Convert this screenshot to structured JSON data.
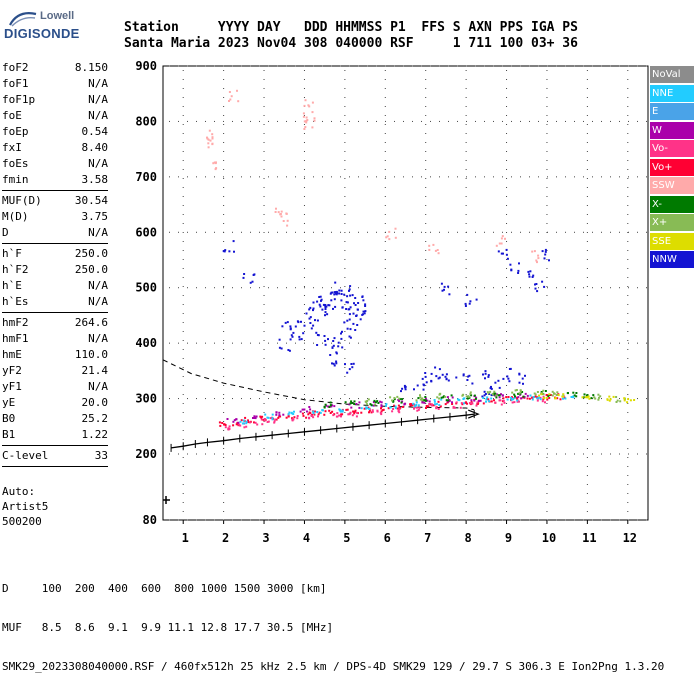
{
  "logo": {
    "line1": "Lowell",
    "line2": "DIGISONDE"
  },
  "header": {
    "line1": "Station     YYYY DAY   DDD HHMMSS P1  FFS S AXN PPS IGA PS",
    "line2": "Santa Maria 2023 Nov04 308 040000 RSF     1 711 100 03+ 36"
  },
  "params": {
    "group1": [
      {
        "name": "foF2",
        "value": "8.150"
      },
      {
        "name": "foF1",
        "value": "N/A"
      },
      {
        "name": "foF1p",
        "value": "N/A"
      },
      {
        "name": "foE",
        "value": "N/A"
      },
      {
        "name": "foEp",
        "value": "0.54"
      },
      {
        "name": "fxI",
        "value": "8.40"
      },
      {
        "name": "foEs",
        "value": "N/A"
      },
      {
        "name": "fmin",
        "value": "3.58"
      }
    ],
    "group2": [
      {
        "name": "MUF(D)",
        "value": "30.54"
      },
      {
        "name": "M(D)",
        "value": "3.75"
      },
      {
        "name": "D",
        "value": "N/A"
      }
    ],
    "group3": [
      {
        "name": "h`F",
        "value": "250.0"
      },
      {
        "name": "h`F2",
        "value": "250.0"
      },
      {
        "name": "h`E",
        "value": "N/A"
      },
      {
        "name": "h`Es",
        "value": "N/A"
      }
    ],
    "group4": [
      {
        "name": "hmF2",
        "value": "264.6"
      },
      {
        "name": "hmF1",
        "value": "N/A"
      },
      {
        "name": "hmE",
        "value": "110.0"
      },
      {
        "name": "yF2",
        "value": "21.4"
      },
      {
        "name": "yF1",
        "value": "N/A"
      },
      {
        "name": "yE",
        "value": "20.0"
      },
      {
        "name": "B0",
        "value": "25.2"
      },
      {
        "name": "B1",
        "value": "1.22"
      }
    ],
    "group5": [
      {
        "name": "C-level",
        "value": "33"
      }
    ]
  },
  "auto": {
    "line1": "Auto:",
    "line2": "Artist5",
    "line3": "500200"
  },
  "legend": [
    {
      "label": "NoVal",
      "color": "#8c8c8c"
    },
    {
      "label": "NNE",
      "color": "#22ccff"
    },
    {
      "label": "E",
      "color": "#4aa3e8"
    },
    {
      "label": "W",
      "color": "#aa00aa"
    },
    {
      "label": "Vo-",
      "color": "#ff3388"
    },
    {
      "label": "Vo+",
      "color": "#ff0033"
    },
    {
      "label": "SSW",
      "color": "#ffaaaa"
    },
    {
      "label": "X-",
      "color": "#007a00"
    },
    {
      "label": "X+",
      "color": "#88bb55"
    },
    {
      "label": "SSE",
      "color": "#dddd00"
    },
    {
      "label": "NNW",
      "color": "#1414d2"
    }
  ],
  "footer": {
    "line1": "D     100  200  400  600  800 1000 1500 3000 [km]",
    "line2": "MUF   8.5  8.6  9.1  9.9 11.1 12.8 17.7 30.5 [MHz]",
    "line3": "SMK29_2023308040000.RSF / 460fx512h 25 kHz 2.5 km / DPS-4D SMK29 129 / 29.7 S 306.3 E Ion2Png 1.3.20"
  },
  "chart_data": {
    "type": "scatter",
    "xlim": [
      0.5,
      12.5
    ],
    "ylim": [
      80,
      900
    ],
    "xticks": [
      "1",
      "2",
      "3",
      "4",
      "5",
      "6",
      "7",
      "8",
      "9",
      "10",
      "11",
      "12"
    ],
    "yticks": [
      "900",
      "800",
      "700",
      "600",
      "500",
      "400",
      "300",
      "200",
      "80"
    ],
    "grid": true,
    "series": [
      {
        "color": "#ff0033",
        "points": [
          [
            2,
            255
          ],
          [
            2.3,
            258
          ],
          [
            2.6,
            262
          ],
          [
            3,
            265
          ],
          [
            3.3,
            268
          ],
          [
            3.6,
            270
          ],
          [
            4,
            272
          ],
          [
            4.3,
            274
          ],
          [
            4.6,
            276
          ],
          [
            5,
            278
          ],
          [
            5.3,
            280
          ],
          [
            5.6,
            281
          ],
          [
            6,
            283
          ],
          [
            6.3,
            285
          ],
          [
            6.6,
            287
          ],
          [
            7,
            289
          ],
          [
            7.3,
            291
          ],
          [
            7.6,
            293
          ],
          [
            8,
            295
          ],
          [
            8.3,
            297
          ],
          [
            8.6,
            299
          ],
          [
            9,
            300
          ],
          [
            9.3,
            302
          ],
          [
            9.6,
            303
          ],
          [
            10,
            304
          ],
          [
            10.3,
            305
          ]
        ]
      },
      {
        "color": "#ff3388",
        "points": [
          [
            2.1,
            250
          ],
          [
            2.5,
            255
          ],
          [
            2.9,
            260
          ],
          [
            3.2,
            262
          ],
          [
            3.8,
            266
          ],
          [
            4.2,
            268
          ],
          [
            4.8,
            272
          ],
          [
            5.2,
            274
          ],
          [
            5.8,
            278
          ],
          [
            6.2,
            280
          ],
          [
            6.8,
            284
          ],
          [
            7.2,
            287
          ],
          [
            7.8,
            290
          ],
          [
            8.2,
            293
          ],
          [
            8.8,
            296
          ],
          [
            9.2,
            298
          ],
          [
            9.8,
            300
          ]
        ]
      },
      {
        "color": "#aa00aa",
        "points": [
          [
            2.2,
            262
          ],
          [
            2.8,
            270
          ],
          [
            3.4,
            276
          ],
          [
            4,
            282
          ],
          [
            4.6,
            286
          ],
          [
            5.2,
            290
          ],
          [
            5.8,
            292
          ],
          [
            6.4,
            296
          ],
          [
            7,
            298
          ],
          [
            7.6,
            300
          ],
          [
            8.2,
            302
          ],
          [
            8.8,
            305
          ],
          [
            9.4,
            306
          ]
        ]
      },
      {
        "color": "#1414d2",
        "points": [
          [
            4.3,
            480
          ],
          [
            4.4,
            470
          ],
          [
            4.5,
            460
          ],
          [
            4.6,
            475
          ],
          [
            4.7,
            490
          ],
          [
            4.8,
            500
          ],
          [
            4.9,
            485
          ],
          [
            5,
            470
          ],
          [
            5.1,
            495
          ],
          [
            5.2,
            460
          ],
          [
            5.3,
            445
          ],
          [
            4.2,
            440
          ],
          [
            4.1,
            455
          ],
          [
            3.9,
            430
          ],
          [
            3.8,
            420
          ],
          [
            3.5,
            430
          ],
          [
            4.4,
            410
          ],
          [
            4.6,
            400
          ],
          [
            4.8,
            395
          ],
          [
            5,
            420
          ],
          [
            5.1,
            435
          ],
          [
            5.3,
            480
          ],
          [
            5.4,
            465
          ],
          [
            7,
            340
          ],
          [
            7.3,
            350
          ],
          [
            7.6,
            345
          ],
          [
            8,
            335
          ],
          [
            8.4,
            345
          ],
          [
            8.7,
            330
          ],
          [
            9,
            345
          ],
          [
            9.3,
            340
          ],
          [
            8.9,
            560
          ],
          [
            9.2,
            540
          ],
          [
            9.5,
            520
          ],
          [
            9.8,
            505
          ],
          [
            10,
            560
          ],
          [
            8.1,
            480
          ],
          [
            7.5,
            500
          ],
          [
            2.1,
            575
          ],
          [
            2.6,
            520
          ],
          [
            3.5,
            400
          ],
          [
            4.7,
            370
          ],
          [
            5.1,
            360
          ],
          [
            6.5,
            320
          ],
          [
            6.8,
            330
          ],
          [
            8.5,
            310
          ]
        ]
      },
      {
        "color": "#22ccff",
        "points": [
          [
            2.5,
            260
          ],
          [
            3.1,
            268
          ],
          [
            3.7,
            275
          ],
          [
            4.3,
            279
          ],
          [
            4.9,
            282
          ],
          [
            5.5,
            285
          ],
          [
            6.1,
            288
          ],
          [
            6.7,
            292
          ],
          [
            7.3,
            295
          ],
          [
            7.9,
            298
          ],
          [
            8.5,
            301
          ],
          [
            9.1,
            303
          ],
          [
            9.7,
            305
          ],
          [
            10.5,
            306
          ]
        ]
      },
      {
        "color": "#007a00",
        "points": [
          [
            4.5,
            290
          ],
          [
            5.1,
            293
          ],
          [
            5.7,
            295
          ],
          [
            6.3,
            298
          ],
          [
            6.9,
            300
          ],
          [
            7.5,
            303
          ],
          [
            8.1,
            306
          ],
          [
            8.7,
            308
          ],
          [
            9.3,
            310
          ],
          [
            9.9,
            311
          ],
          [
            10.6,
            308
          ],
          [
            11,
            305
          ]
        ]
      },
      {
        "color": "#88bb55",
        "points": [
          [
            5.6,
            296
          ],
          [
            6.2,
            300
          ],
          [
            6.8,
            303
          ],
          [
            7.4,
            306
          ],
          [
            8,
            309
          ],
          [
            8.6,
            312
          ],
          [
            9.2,
            313
          ],
          [
            9.8,
            314
          ],
          [
            10.2,
            312
          ],
          [
            11.2,
            304
          ],
          [
            11.8,
            300
          ]
        ]
      },
      {
        "color": "#ffaaaa",
        "points": [
          [
            1.7,
            780
          ],
          [
            1.7,
            760
          ],
          [
            1.7,
            720
          ],
          [
            4.1,
            830
          ],
          [
            4.1,
            810
          ],
          [
            4.1,
            800
          ],
          [
            3.4,
            640
          ],
          [
            3.5,
            625
          ],
          [
            6.1,
            600
          ],
          [
            2.2,
            850
          ],
          [
            7.2,
            575
          ],
          [
            8.8,
            585
          ],
          [
            9.7,
            560
          ]
        ]
      },
      {
        "color": "#dddd00",
        "points": [
          [
            9.9,
            306
          ],
          [
            10.3,
            305
          ],
          [
            10.9,
            304
          ],
          [
            11.5,
            302
          ],
          [
            12,
            300
          ]
        ]
      }
    ],
    "profile": [
      [
        0.5,
        370
      ],
      [
        1.2,
        345
      ],
      [
        2,
        328
      ],
      [
        3,
        312
      ],
      [
        4,
        298
      ],
      [
        5,
        290
      ],
      [
        6,
        286
      ],
      [
        7,
        284
      ],
      [
        8,
        283
      ],
      [
        8.2,
        280
      ]
    ],
    "trace": [
      [
        0.7,
        211
      ],
      [
        1,
        214
      ],
      [
        1.3,
        218
      ],
      [
        1.6,
        221
      ],
      [
        2,
        224
      ],
      [
        2.4,
        228
      ],
      [
        2.8,
        231
      ],
      [
        3.2,
        234
      ],
      [
        3.6,
        237
      ],
      [
        4,
        240
      ],
      [
        4.4,
        243
      ],
      [
        4.8,
        246
      ],
      [
        5.2,
        249
      ],
      [
        5.6,
        252
      ],
      [
        6,
        255
      ],
      [
        6.4,
        258
      ],
      [
        6.8,
        261
      ],
      [
        7.2,
        264
      ],
      [
        7.6,
        267
      ],
      [
        8,
        270
      ],
      [
        8.2,
        272
      ]
    ]
  }
}
